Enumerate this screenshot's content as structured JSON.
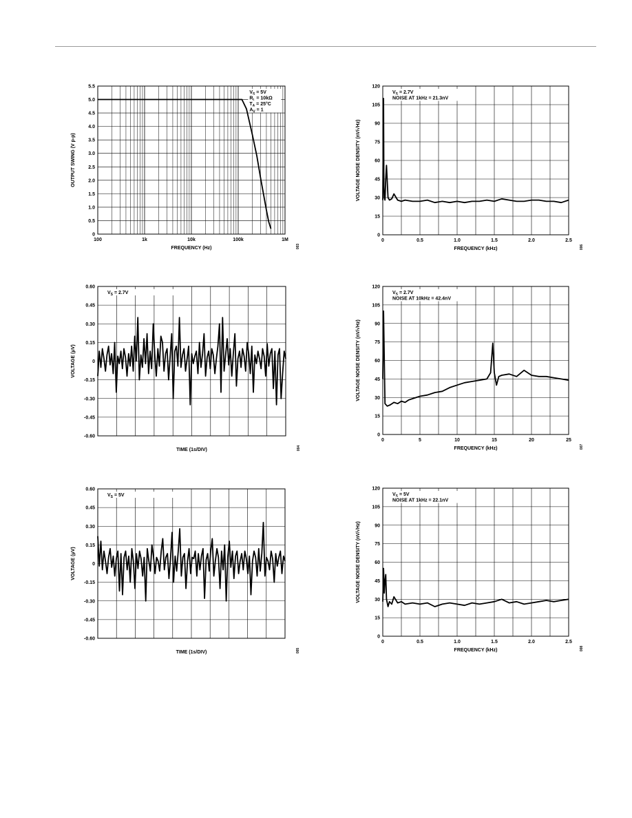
{
  "chart_data": [
    {
      "id": "fig003",
      "type": "line",
      "x_scale": "log",
      "xlim": [
        100,
        1000000
      ],
      "ylim": [
        0,
        5.5
      ],
      "xticks": [
        100,
        1000,
        10000,
        100000,
        1000000
      ],
      "xtick_labels": [
        "100",
        "1k",
        "10k",
        "100k",
        "1M"
      ],
      "yticks": [
        0,
        0.5,
        1.0,
        1.5,
        2.0,
        2.5,
        3.0,
        3.5,
        4.0,
        4.5,
        5.0,
        5.5
      ],
      "ytick_labels": [
        "0",
        "0.5",
        "1.0",
        "1.5",
        "2.0",
        "2.5",
        "3.0",
        "3.5",
        "4.0",
        "4.5",
        "5.0",
        "5.5"
      ],
      "xlabel": "FREQUENCY (Hz)",
      "ylabel": "OUTPUT SWING (V p-p)",
      "grid": true,
      "annotations": [
        "V_S = 5V",
        "R_L = 10kΩ",
        "T_A = 25°C",
        "A_V = 1"
      ],
      "figure_code": "003",
      "series": [
        {
          "x": [
            100,
            1000,
            10000,
            100000,
            120000,
            150000,
            200000,
            250000,
            300000,
            350000,
            400000,
            450000,
            500000
          ],
          "y": [
            5.0,
            5.0,
            5.0,
            5.0,
            5.0,
            4.65,
            3.7,
            2.9,
            2.1,
            1.45,
            0.9,
            0.45,
            0.2
          ]
        }
      ]
    },
    {
      "id": "fig006",
      "type": "line",
      "xlim": [
        0,
        2.5
      ],
      "ylim": [
        0,
        120
      ],
      "xticks": [
        0,
        0.25,
        0.5,
        0.75,
        1.0,
        1.25,
        1.5,
        1.75,
        2.0,
        2.25,
        2.5
      ],
      "xtick_labels": [
        "0",
        "",
        "0.5",
        "",
        "1.0",
        "",
        "1.5",
        "",
        "2.0",
        "",
        "2.5"
      ],
      "yticks": [
        0,
        15,
        30,
        45,
        60,
        75,
        90,
        105,
        120
      ],
      "ytick_labels": [
        "0",
        "15",
        "30",
        "45",
        "60",
        "75",
        "90",
        "105",
        "120"
      ],
      "xlabel": "FREQUENCY (kHz)",
      "ylabel": "VOLTAGE NOISE DENSITY (nV/√Hz)",
      "grid": true,
      "annotations": [
        "V_S = 2.7V",
        "NOISE AT 1kHz = 21.3nV"
      ],
      "figure_code": "006",
      "series": [
        {
          "x": [
            0.0,
            0.01,
            0.015,
            0.02,
            0.03,
            0.04,
            0.05,
            0.07,
            0.09,
            0.12,
            0.15,
            0.2,
            0.25,
            0.3,
            0.4,
            0.5,
            0.6,
            0.7,
            0.8,
            0.9,
            1.0,
            1.1,
            1.2,
            1.3,
            1.4,
            1.5,
            1.6,
            1.7,
            1.8,
            1.9,
            2.0,
            2.1,
            2.2,
            2.3,
            2.4,
            2.5
          ],
          "y": [
            28,
            110,
            40,
            30,
            28,
            45,
            56,
            30,
            28,
            29,
            33,
            28,
            27,
            28,
            27,
            27,
            28,
            26,
            27,
            26,
            27,
            26,
            27,
            27,
            28,
            27,
            29,
            28,
            27,
            27,
            28,
            28,
            27,
            27,
            26,
            28
          ]
        }
      ]
    },
    {
      "id": "fig004",
      "type": "line",
      "ylim": [
        -0.6,
        0.6
      ],
      "yticks": [
        -0.6,
        -0.45,
        -0.3,
        -0.15,
        0,
        0.15,
        0.3,
        0.45,
        0.6
      ],
      "ytick_labels": [
        "-0.60",
        "-0.45",
        "-0.30",
        "-0.15",
        "0",
        "0.15",
        "0.30",
        "0.45",
        "0.60"
      ],
      "x_divisions": 10,
      "xlabel": "TIME (1s/DIV)",
      "ylabel": "VOLTAGE (μV)",
      "grid": true,
      "annotations": [
        "V_S = 2.7V"
      ],
      "figure_code": "004",
      "series": [
        {
          "y": [
            -0.12,
            0.08,
            -0.05,
            0.1,
            0.02,
            -0.08,
            0.05,
            0.12,
            -0.03,
            0.06,
            -0.1,
            0.15,
            -0.25,
            0.04,
            -0.02,
            0.08,
            -0.06,
            0.1,
            0.03,
            -0.12,
            0.06,
            -0.04,
            0.12,
            -0.08,
            0.2,
            0.0,
            0.35,
            -0.15,
            0.05,
            -0.05,
            0.18,
            -0.02,
            0.22,
            -0.1,
            0.08,
            -0.06,
            0.3,
            0.05,
            -0.12,
            0.1,
            -0.04,
            0.2,
            0.15,
            -0.08,
            0.06,
            0.1,
            -0.15,
            0.04,
            0.22,
            -0.3,
            0.08,
            0.12,
            -0.04,
            0.35,
            -0.05,
            0.05,
            0.1,
            -0.08,
            0.02,
            0.12,
            -0.35,
            0.06,
            -0.02,
            0.04,
            0.08,
            -0.1,
            0.15,
            -0.05,
            0.06,
            0.22,
            -0.12,
            0.03,
            0.08,
            -0.06,
            0.1,
            0.05,
            -0.1,
            0.02,
            0.12,
            0.3,
            -0.25,
            0.35,
            -0.08,
            0.05,
            0.18,
            -0.03,
            0.1,
            -0.12,
            0.06,
            0.22,
            -0.2,
            0.02,
            0.08,
            -0.05,
            0.1,
            0.04,
            -0.08,
            0.15,
            0.06,
            -0.1,
            0.12,
            -0.25,
            0.05,
            -0.02,
            0.08,
            0.02,
            -0.06,
            0.1,
            0.04,
            -0.12,
            0.14,
            -0.04,
            0.06,
            0.1,
            -0.22,
            0.08,
            -0.35,
            0.05,
            0.1,
            -0.3,
            -0.1,
            0.08,
            0.02
          ]
        }
      ]
    },
    {
      "id": "fig007",
      "type": "line",
      "xlim": [
        0,
        25
      ],
      "ylim": [
        0,
        120
      ],
      "xticks": [
        0,
        2.5,
        5,
        7.5,
        10,
        12.5,
        15,
        17.5,
        20,
        22.5,
        25
      ],
      "xtick_labels": [
        "0",
        "",
        "5",
        "",
        "10",
        "",
        "15",
        "",
        "20",
        "",
        "25"
      ],
      "yticks": [
        0,
        15,
        30,
        45,
        60,
        75,
        90,
        105,
        120
      ],
      "ytick_labels": [
        "0",
        "15",
        "30",
        "45",
        "60",
        "75",
        "90",
        "105",
        "120"
      ],
      "xlabel": "FREQUENCY (kHz)",
      "ylabel": "VOLTAGE NOISE DENSITY (nV/√Hz)",
      "grid": true,
      "annotations": [
        "V_S = 2.7V",
        "NOISE AT 10kHz = 42.4nV"
      ],
      "figure_code": "007",
      "series": [
        {
          "x": [
            0,
            0.1,
            0.3,
            0.6,
            1,
            1.5,
            2,
            2.5,
            3,
            3.5,
            4,
            5,
            6,
            7,
            8,
            9,
            10,
            11,
            12,
            13,
            14,
            14.5,
            14.8,
            15,
            15.3,
            15.6,
            16,
            17,
            18,
            19,
            20,
            21,
            22,
            23,
            24,
            25
          ],
          "y": [
            45,
            100,
            25,
            23,
            24,
            26,
            25,
            27,
            26,
            28,
            29,
            31,
            32,
            34,
            35,
            38,
            40,
            42,
            43,
            44,
            45,
            50,
            74,
            50,
            40,
            47,
            48,
            49,
            47,
            52,
            48,
            47,
            47,
            46,
            45,
            44
          ]
        }
      ]
    },
    {
      "id": "fig005",
      "type": "line",
      "ylim": [
        -0.6,
        0.6
      ],
      "yticks": [
        -0.6,
        -0.45,
        -0.3,
        -0.15,
        0,
        0.15,
        0.3,
        0.45,
        0.6
      ],
      "ytick_labels": [
        "-0.60",
        "-0.45",
        "-0.30",
        "-0.15",
        "0",
        "0.15",
        "0.30",
        "0.45",
        "0.60"
      ],
      "x_divisions": 10,
      "xlabel": "TIME (1s/DIV)",
      "ylabel": "VOLTAGE (μV)",
      "grid": true,
      "annotations": [
        "V_S = 5V"
      ],
      "figure_code": "005",
      "series": [
        {
          "y": [
            0.22,
            -0.02,
            0.18,
            -0.05,
            0.1,
            0.02,
            -0.08,
            0.05,
            0.12,
            -0.03,
            0.06,
            -0.1,
            0.04,
            0.1,
            -0.22,
            0.08,
            -0.25,
            0.05,
            0.1,
            -0.05,
            0.06,
            -0.15,
            0.12,
            0.02,
            -0.2,
            0.08,
            -0.04,
            0.1,
            0.04,
            -0.1,
            0.05,
            -0.3,
            0.12,
            0.02,
            -0.06,
            0.15,
            0.06,
            -0.08,
            0.05,
            0.02,
            -0.06,
            0.1,
            0.2,
            -0.05,
            0.05,
            0.08,
            -0.12,
            0.04,
            0.25,
            -0.15,
            0.06,
            -0.06,
            0.1,
            0.28,
            -0.1,
            0.05,
            0.08,
            -0.2,
            0.02,
            0.12,
            -0.08,
            0.05,
            0.04,
            0.1,
            -0.1,
            0.08,
            -0.05,
            0.06,
            0.12,
            -0.28,
            0.03,
            0.08,
            -0.06,
            0.1,
            0.2,
            -0.1,
            0.02,
            0.12,
            0.05,
            -0.2,
            0.1,
            -0.05,
            0.15,
            -0.3,
            0.05,
            0.18,
            -0.03,
            0.1,
            -0.12,
            0.06,
            0.1,
            -0.08,
            0.02,
            0.08,
            -0.05,
            0.1,
            0.04,
            -0.08,
            0.06,
            -0.25,
            0.02,
            0.1,
            0.05,
            -0.1,
            0.12,
            -0.06,
            0.08,
            0.33,
            -0.1,
            0.05,
            0.02,
            -0.05,
            0.1,
            0.04,
            -0.15,
            0.08,
            -0.02,
            0.05,
            0.1,
            -0.08,
            0.06,
            0.02
          ]
        }
      ]
    },
    {
      "id": "fig008",
      "type": "line",
      "xlim": [
        0,
        2.5
      ],
      "ylim": [
        0,
        120
      ],
      "xticks": [
        0,
        0.25,
        0.5,
        0.75,
        1.0,
        1.25,
        1.5,
        1.75,
        2.0,
        2.25,
        2.5
      ],
      "xtick_labels": [
        "0",
        "",
        "0.5",
        "",
        "1.0",
        "",
        "1.5",
        "",
        "2.0",
        "",
        "2.5"
      ],
      "yticks": [
        0,
        15,
        30,
        45,
        60,
        75,
        90,
        105,
        120
      ],
      "ytick_labels": [
        "0",
        "15",
        "30",
        "45",
        "60",
        "75",
        "90",
        "105",
        "120"
      ],
      "xlabel": "FREQUENCY (kHz)",
      "ylabel": "VOLTAGE NOISE DENSITY (nV/√Hz)",
      "grid": true,
      "annotations": [
        "V_S = 5V",
        "NOISE AT 1kHz = 22.1nV"
      ],
      "figure_code": "008",
      "series": [
        {
          "x": [
            0.0,
            0.01,
            0.02,
            0.03,
            0.04,
            0.05,
            0.07,
            0.09,
            0.12,
            0.15,
            0.2,
            0.25,
            0.3,
            0.4,
            0.5,
            0.6,
            0.7,
            0.8,
            0.9,
            1.0,
            1.1,
            1.2,
            1.3,
            1.4,
            1.5,
            1.6,
            1.7,
            1.8,
            1.9,
            2.0,
            2.1,
            2.2,
            2.3,
            2.4,
            2.5
          ],
          "y": [
            28,
            55,
            35,
            45,
            50,
            30,
            24,
            28,
            26,
            32,
            27,
            28,
            26,
            27,
            26,
            27,
            24,
            26,
            27,
            26,
            25,
            27,
            26,
            27,
            28,
            30,
            27,
            28,
            26,
            27,
            28,
            29,
            28,
            29,
            30
          ]
        }
      ]
    }
  ]
}
